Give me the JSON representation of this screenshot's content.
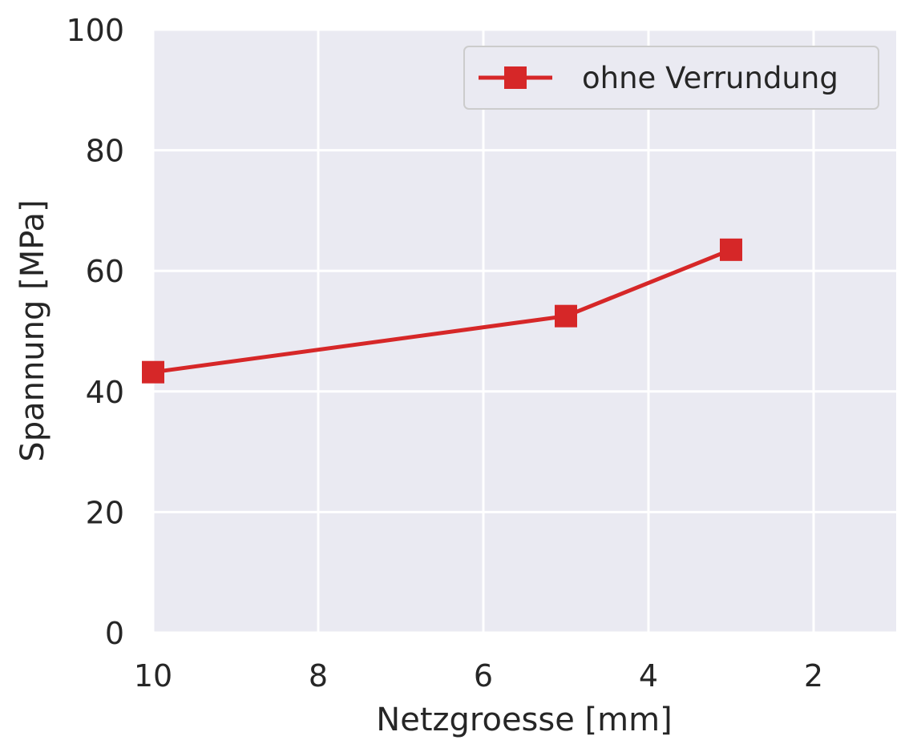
{
  "chart_data": {
    "type": "line",
    "xlabel": "Netzgroesse [mm]",
    "ylabel": "Spannung [MPa]",
    "xlim": [
      10,
      1
    ],
    "ylim": [
      0,
      100
    ],
    "x_inverted": true,
    "x_ticks": [
      10,
      8,
      6,
      4,
      2
    ],
    "y_ticks": [
      0,
      20,
      40,
      60,
      80,
      100
    ],
    "x_tick_labels": [
      "10",
      "8",
      "6",
      "4",
      "2"
    ],
    "y_tick_labels": [
      "0",
      "20",
      "40",
      "60",
      "80",
      "100"
    ],
    "grid": true,
    "legend_position": "top-right",
    "series": [
      {
        "name": "ohne Verrundung",
        "color": "#d62728",
        "marker": "square",
        "x": [
          10,
          5,
          3
        ],
        "y": [
          43.2,
          52.5,
          63.5
        ]
      }
    ]
  }
}
